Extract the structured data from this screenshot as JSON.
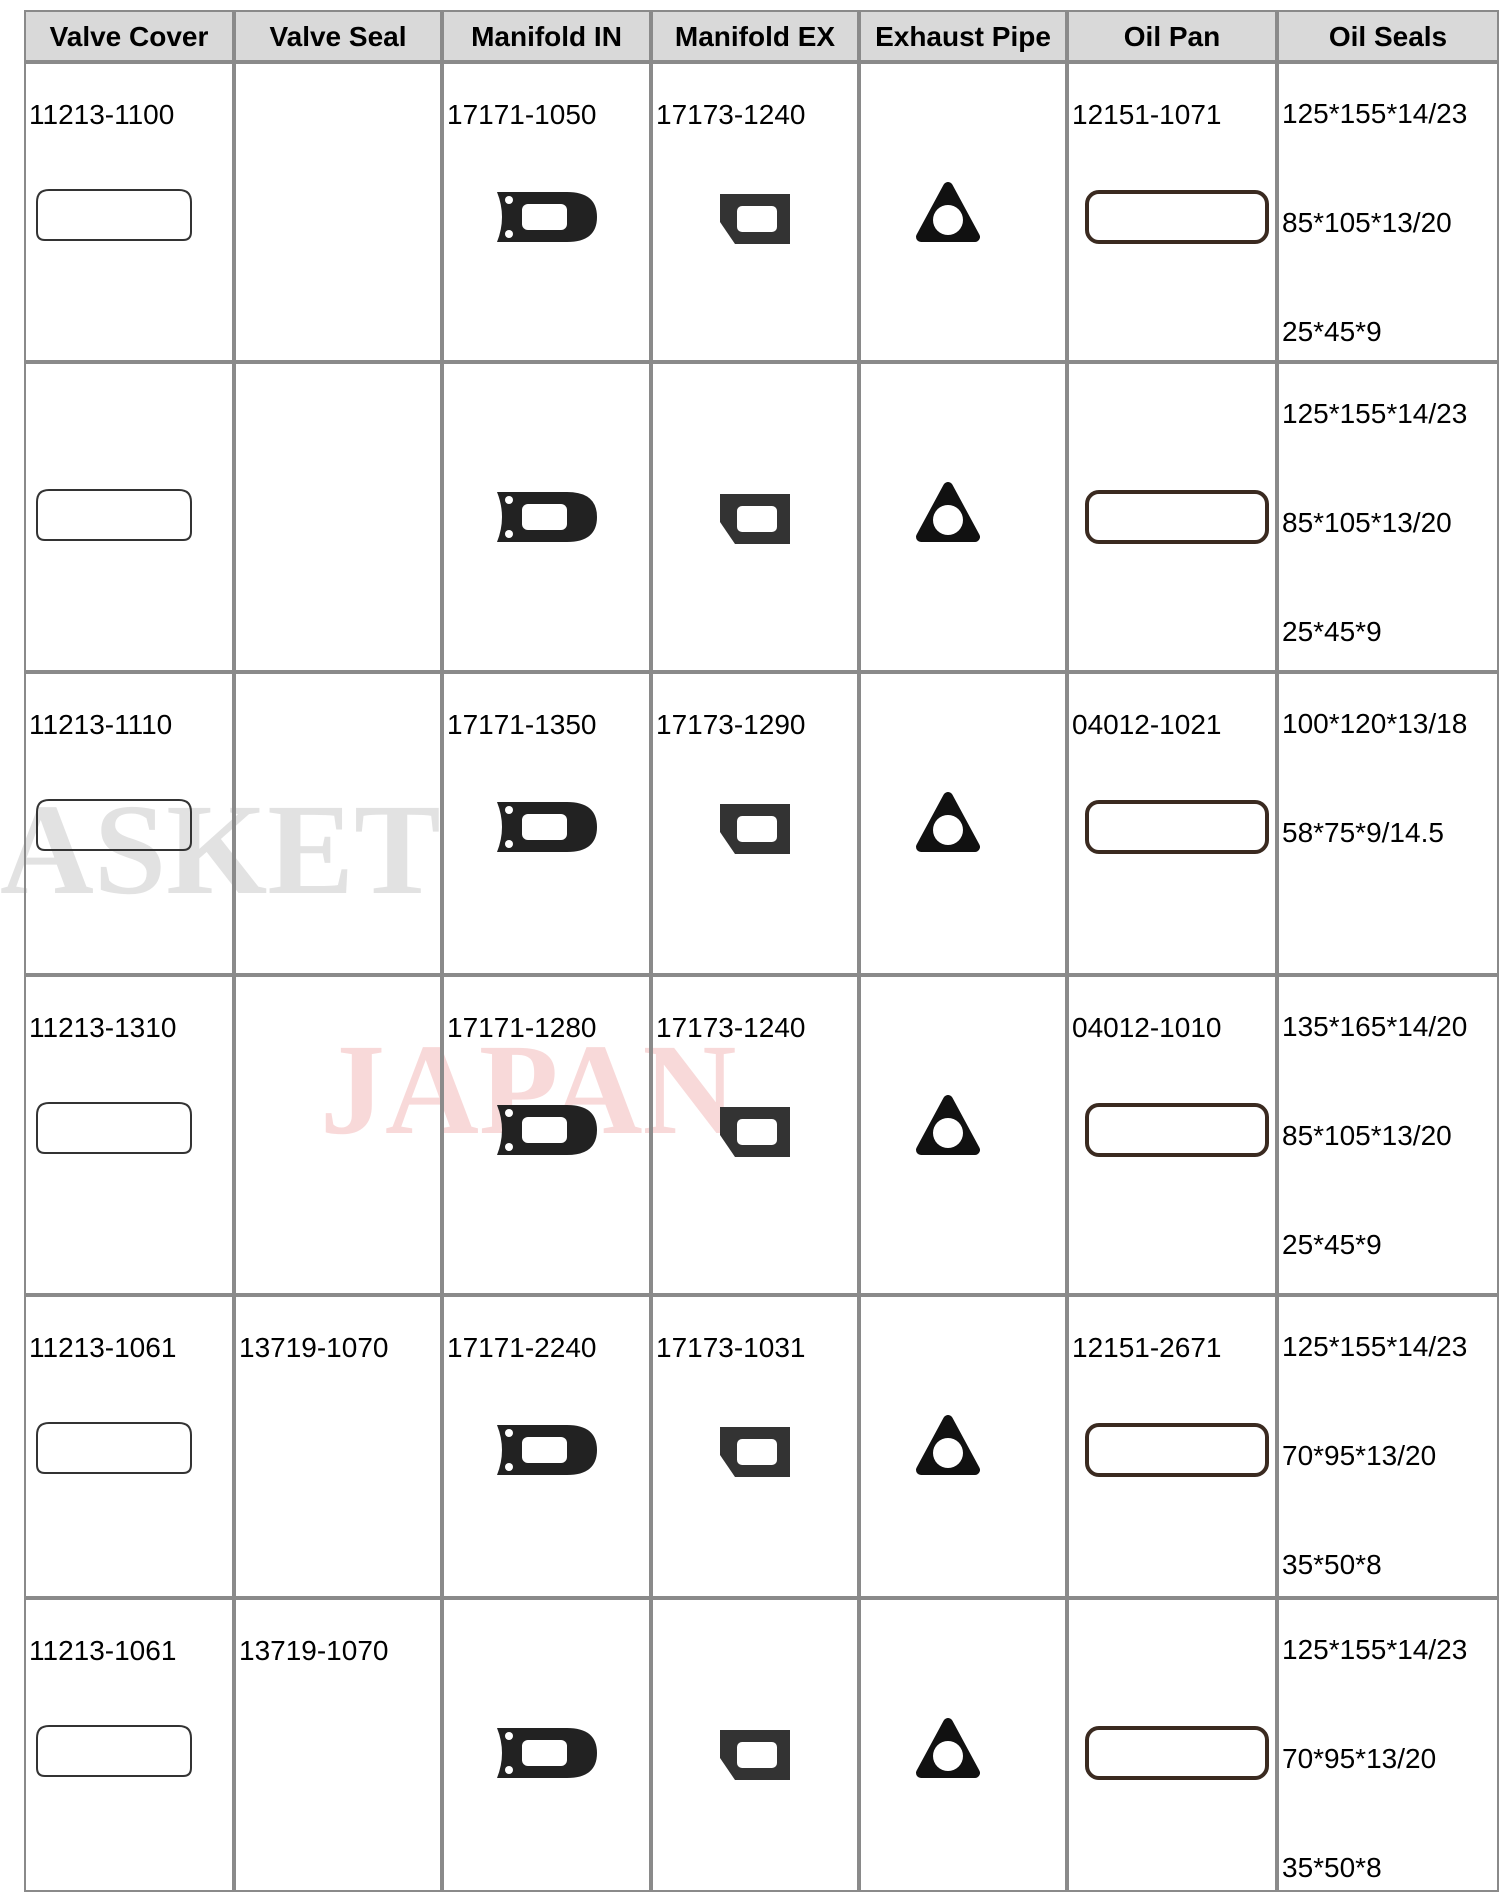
{
  "table": {
    "headers": [
      "Valve Cover",
      "Valve Seal",
      "Manifold IN",
      "Manifold EX",
      "Exhaust Pipe",
      "Oil Pan",
      "Oil Seals"
    ],
    "rows": [
      {
        "valve_cover": "11213-1100",
        "manifold_in": "17171-1050",
        "manifold_ex": "17173-1240",
        "oil_pan": "12151-1071",
        "oil_seals": [
          "125*155*14/23",
          "85*105*13/20",
          "25*45*9"
        ]
      },
      {
        "oil_seals": [
          "125*155*14/23",
          "85*105*13/20",
          "25*45*9"
        ]
      },
      {
        "valve_cover": "11213-1110",
        "manifold_in": "17171-1350",
        "manifold_ex": "17173-1290",
        "oil_pan": "04012-1021",
        "oil_seals": [
          "100*120*13/18",
          "58*75*9/14.5"
        ]
      },
      {
        "valve_cover": "11213-1310",
        "manifold_in": "17171-1280",
        "manifold_ex": "17173-1240",
        "oil_pan": "04012-1010",
        "oil_seals": [
          "135*165*14/20",
          "85*105*13/20",
          "25*45*9"
        ]
      },
      {
        "valve_cover": "11213-1061",
        "valve_seal": "13719-1070",
        "manifold_in": "17171-2240",
        "manifold_ex": "17173-1031",
        "oil_pan": "12151-2671",
        "oil_seals": [
          "125*155*14/23",
          "70*95*13/20",
          "35*50*8"
        ]
      },
      {
        "valve_cover": "11213-1061",
        "valve_seal": "13719-1070",
        "oil_seals": [
          "125*155*14/23",
          "70*95*13/20",
          "35*50*8"
        ]
      }
    ]
  },
  "watermark": [
    "ASKET",
    "JAPAN"
  ]
}
